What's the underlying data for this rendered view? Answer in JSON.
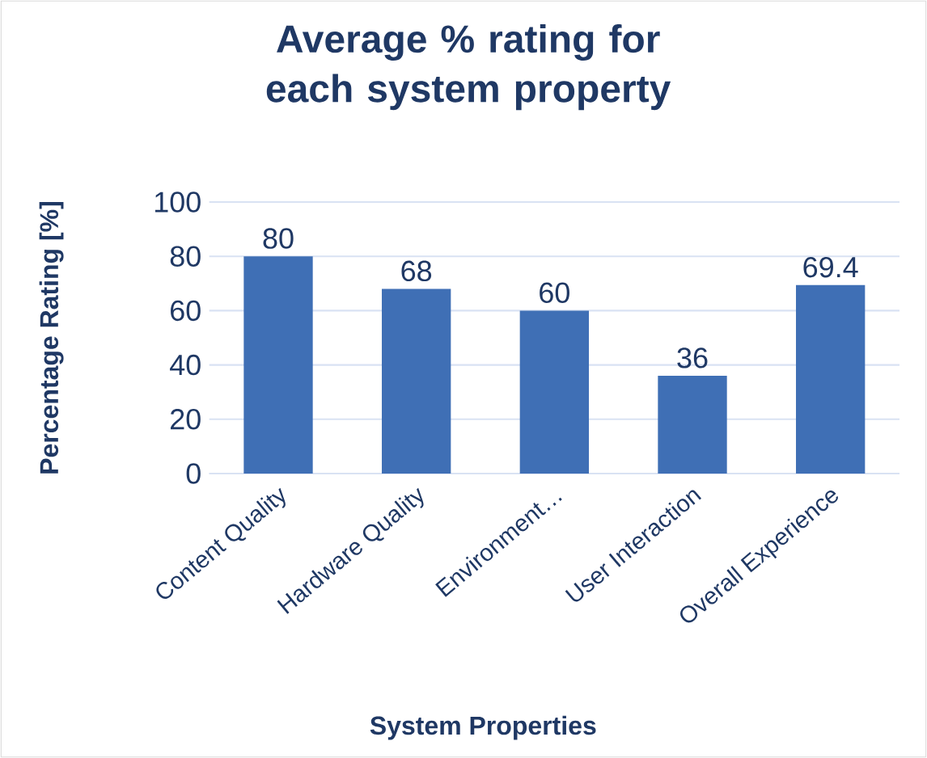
{
  "chart_data": {
    "type": "bar",
    "title": "Average % rating for each system property",
    "xlabel": "System Properties",
    "ylabel": "Percentage Rating [%]",
    "categories": [
      "Content Quality",
      "Hardware Quality",
      "Environment…",
      "User Interaction",
      "Overall Experience"
    ],
    "values": [
      80,
      68,
      60,
      36,
      69.4
    ],
    "color": "#3f6fb5",
    "ylim": [
      0,
      100
    ],
    "yticks": [
      0,
      20,
      40,
      60,
      80,
      100
    ],
    "grid": "y",
    "data_labels": true
  }
}
